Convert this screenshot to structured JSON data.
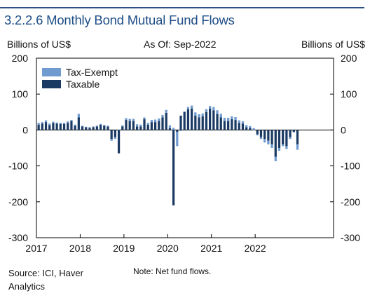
{
  "header": {
    "title": "3.2.2.6 Monthly Bond Mutual Fund Flows",
    "left_unit": "Billions of US$",
    "as_of": "As Of: Sep-2022",
    "right_unit": "Billions of US$"
  },
  "footer": {
    "source": "Source: ICI, Haver Analytics",
    "note": "Note: Net fund flows."
  },
  "colors": {
    "tax_exempt": "#6f9bd1",
    "taxable": "#1b3a63",
    "title": "#1f4e86"
  },
  "chart_data": {
    "type": "bar",
    "stacked": true,
    "title": "3.2.2.6 Monthly Bond Mutual Fund Flows",
    "ylabel": "Billions of US$",
    "ylim": [
      -300,
      200
    ],
    "yticks": [
      200,
      100,
      0,
      -100,
      -200,
      -300
    ],
    "xticks": [
      "2017",
      "2018",
      "2019",
      "2020",
      "2021",
      "2022"
    ],
    "legend_position": "top-left",
    "start": "2017-01",
    "series": [
      {
        "name": "Tax-Exempt",
        "values": [
          5,
          4,
          5,
          4,
          3,
          3,
          3,
          3,
          4,
          3,
          3,
          10,
          2,
          1,
          2,
          2,
          2,
          2,
          2,
          2,
          -5,
          -5,
          1,
          3,
          5,
          6,
          6,
          6,
          5,
          5,
          5,
          6,
          7,
          7,
          7,
          8,
          8,
          6,
          -40,
          -3,
          2,
          6,
          8,
          9,
          9,
          8,
          8,
          7,
          9,
          10,
          10,
          9,
          9,
          8,
          8,
          7,
          6,
          6,
          5,
          5,
          -3,
          -5,
          -10,
          -10,
          -10,
          -12,
          -8,
          -5,
          -8,
          -5,
          -2,
          -15
        ]
      },
      {
        "name": "Taxable",
        "values": [
          15,
          18,
          22,
          14,
          20,
          18,
          17,
          17,
          20,
          25,
          12,
          35,
          10,
          8,
          6,
          8,
          10,
          15,
          12,
          10,
          -25,
          -20,
          -65,
          10,
          28,
          25,
          25,
          10,
          10,
          30,
          15,
          22,
          22,
          25,
          35,
          48,
          5,
          -210,
          -5,
          40,
          50,
          58,
          60,
          40,
          35,
          38,
          50,
          60,
          55,
          45,
          35,
          25,
          25,
          30,
          28,
          20,
          18,
          8,
          6,
          0,
          -12,
          -20,
          -25,
          -30,
          -40,
          -75,
          -50,
          -40,
          -45,
          -20,
          -5,
          -40
        ]
      }
    ]
  }
}
